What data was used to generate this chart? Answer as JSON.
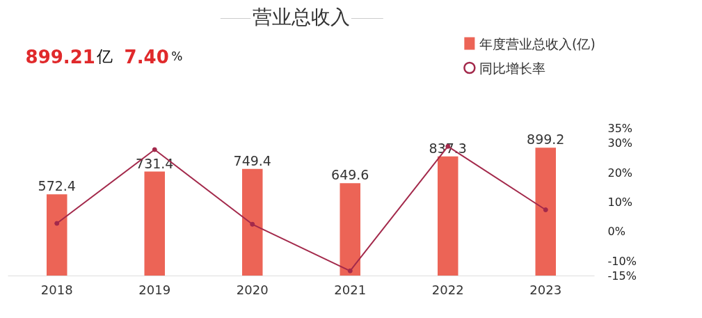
{
  "chart_data": {
    "type": "bar",
    "title": "营业总收入",
    "annotations": [
      "899.21",
      "亿",
      "7.40",
      "%"
    ],
    "categories": [
      "2018",
      "2019",
      "2020",
      "2021",
      "2022",
      "2023"
    ],
    "series": [
      {
        "name": "年度营业总收入(亿)",
        "color": "#ec6456",
        "values": [
          572.4,
          731.4,
          749.4,
          649.6,
          837.3,
          899.2
        ],
        "value_labels": [
          "572.4",
          "731.4",
          "749.4",
          "649.6",
          "837.3",
          "899.2"
        ]
      },
      {
        "name": "同比增长率",
        "type": "line",
        "axis": "y2",
        "color": "#a3294b",
        "values": [
          2.8,
          27.8,
          2.5,
          -13.3,
          28.9,
          7.4
        ]
      }
    ],
    "y2lim": [
      -15,
      35
    ],
    "y2ticks": [
      {
        "value": 35,
        "label": "35%"
      },
      {
        "value": 30,
        "label": "30%"
      },
      {
        "value": 20,
        "label": "20%"
      },
      {
        "value": 10,
        "label": "10%"
      },
      {
        "value": 0,
        "label": "0%"
      },
      {
        "value": -10,
        "label": "-10%"
      },
      {
        "value": -15,
        "label": "-15%"
      }
    ],
    "marker": "circle",
    "legend": "top right"
  }
}
